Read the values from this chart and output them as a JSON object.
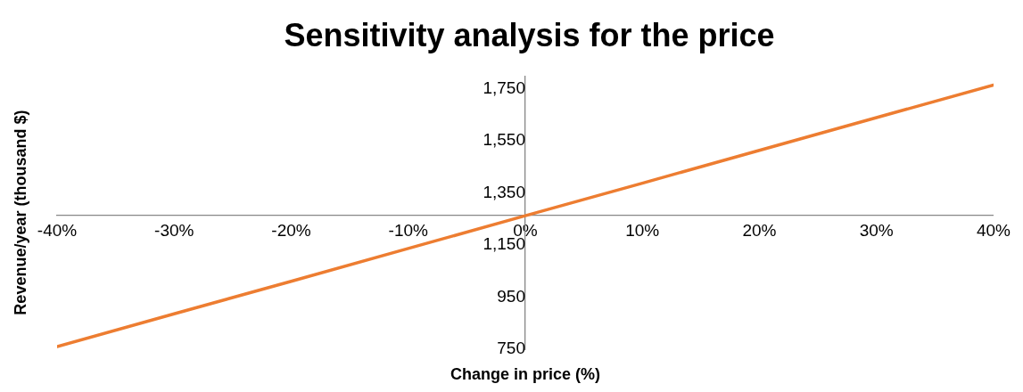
{
  "chart_data": {
    "type": "line",
    "title": "Sensitivity analysis for the price",
    "xlabel": "Change in price (%)",
    "ylabel": "Revenue/year (thousand $)",
    "x": [
      -40,
      -30,
      -20,
      -10,
      0,
      10,
      20,
      30,
      40
    ],
    "series": [
      {
        "color": "#ed7d31",
        "values": [
          760,
          886,
          1011,
          1137,
          1263,
          1388,
          1514,
          1640,
          1765
        ]
      }
    ],
    "xlim": [
      -40,
      40
    ],
    "xticks": [
      {
        "value": -40,
        "label": "-40%"
      },
      {
        "value": -30,
        "label": "-30%"
      },
      {
        "value": -20,
        "label": "-20%"
      },
      {
        "value": -10,
        "label": "-10%"
      },
      {
        "value": 0,
        "label": "0%"
      },
      {
        "value": 10,
        "label": "10%"
      },
      {
        "value": 20,
        "label": "20%"
      },
      {
        "value": 30,
        "label": "30%"
      },
      {
        "value": 40,
        "label": "40%"
      }
    ],
    "ylim": [
      750,
      1800
    ],
    "yticks": [
      {
        "value": 750,
        "label": "750"
      },
      {
        "value": 950,
        "label": "950"
      },
      {
        "value": 1150,
        "label": "1,150"
      },
      {
        "value": 1350,
        "label": "1,350"
      },
      {
        "value": 1550,
        "label": "1,550"
      },
      {
        "value": 1750,
        "label": "1,750"
      }
    ],
    "grid": false,
    "legend": false,
    "marker": "none",
    "line_style": "solid"
  }
}
